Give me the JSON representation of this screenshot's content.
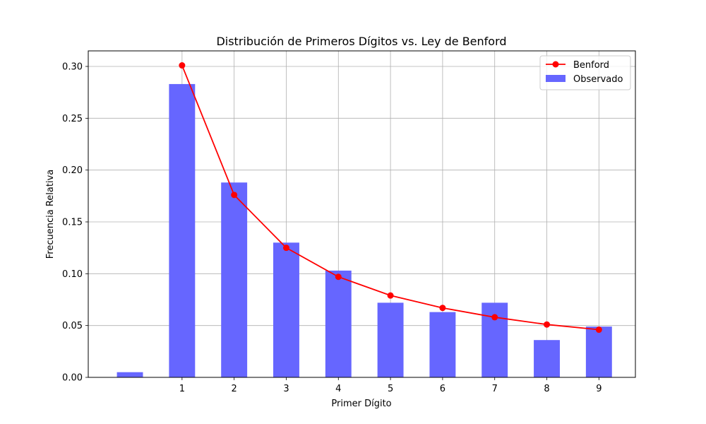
{
  "chart_data": {
    "type": "bar",
    "title": "Distribución de Primeros Dígitos vs. Ley de Benford",
    "xlabel": "Primer Dígito",
    "ylabel": "Frecuencia Relativa",
    "x_ticks": [
      "1",
      "2",
      "3",
      "4",
      "5",
      "6",
      "7",
      "8",
      "9"
    ],
    "y_ticks": [
      "0.00",
      "0.05",
      "0.10",
      "0.15",
      "0.20",
      "0.25",
      "0.30"
    ],
    "xlim": [
      -0.8,
      9.7
    ],
    "ylim": [
      0,
      0.315
    ],
    "grid": true,
    "legend_position": "top-right",
    "series": [
      {
        "name": "Observado",
        "kind": "bar",
        "color": "#6666ff",
        "x": [
          0,
          1,
          2,
          3,
          4,
          5,
          6,
          7,
          8,
          9
        ],
        "values": [
          0.005,
          0.283,
          0.188,
          0.13,
          0.103,
          0.072,
          0.063,
          0.072,
          0.036,
          0.049
        ]
      },
      {
        "name": "Benford",
        "kind": "line",
        "color": "#ff0000",
        "x": [
          1,
          2,
          3,
          4,
          5,
          6,
          7,
          8,
          9
        ],
        "values": [
          0.301,
          0.176,
          0.125,
          0.097,
          0.079,
          0.067,
          0.058,
          0.051,
          0.046
        ]
      }
    ]
  }
}
